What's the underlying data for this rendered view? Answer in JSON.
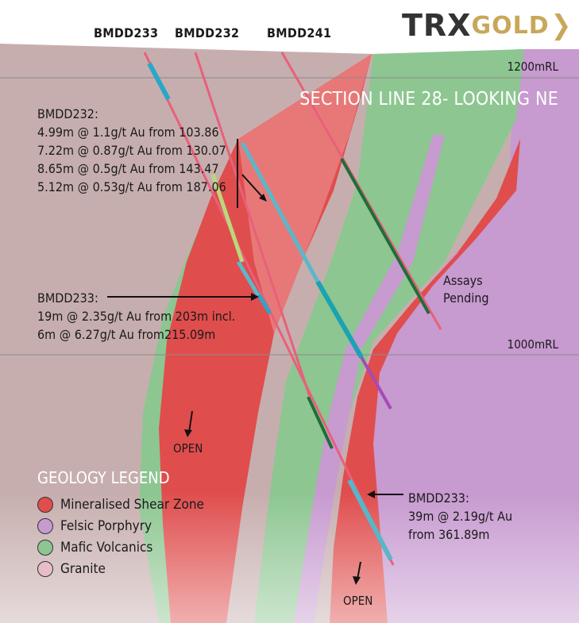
{
  "logo": {
    "brand": "TRX",
    "accent": "GOLD",
    "chevron": "❯",
    "brand_color": "#333333",
    "accent_color": "#c9a75a"
  },
  "title": "SECTION LINE 28- LOOKING NE",
  "drillholes": [
    "BMDD233",
    "BMDD232",
    "BMDD241"
  ],
  "levels": [
    "1200mRL",
    "1000mRL"
  ],
  "intercepts": {
    "bmdd232": {
      "hole": "BMDD232:",
      "lines": [
        "4.99m @ 1.1g/t Au from 103.86",
        "7.22m @ 0.87g/t Au from 130.07",
        "8.65m @ 0.5g/t Au from 143.47",
        "5.12m @ 0.53g/t Au from 187.06"
      ]
    },
    "bmdd233_upper": {
      "hole": "BMDD233:",
      "lines": [
        "19m @ 2.35g/t Au from 203m incl.",
        "6m @ 6.27g/t Au from215.09m"
      ]
    },
    "bmdd233_lower": {
      "hole": "BMDD233:",
      "lines": [
        "39m @ 2.19g/t Au",
        "from 361.89m"
      ]
    }
  },
  "assays_pending": [
    "Assays",
    "Pending"
  ],
  "open_labels": [
    "OPEN",
    "OPEN"
  ],
  "legend": {
    "title": "GEOLOGY LEGEND",
    "items": [
      {
        "label": "Mineralised Shear Zone",
        "color": "#e04d4d"
      },
      {
        "label": "Felsic Porphyry",
        "color": "#c79ad0"
      },
      {
        "label": "Mafic Volcanics",
        "color": "#8dc691"
      },
      {
        "label": "Granite",
        "color": "#e8bcc8"
      }
    ]
  },
  "colors": {
    "background": "#ffffff",
    "granite_base": "#c7aeae",
    "mafic": "#8dc691",
    "felsic": "#c79ad0",
    "shear": "#e04d4d",
    "shear_light": "#e87878",
    "drill_trace": "#e8607a"
  }
}
